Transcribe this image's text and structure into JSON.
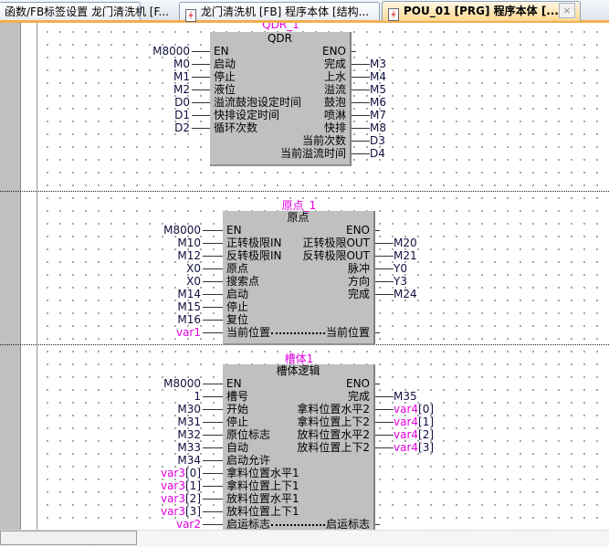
{
  "tabs": [
    {
      "label": "函数/FB标签设置 龙门清洗机 [F...",
      "active": false,
      "icon": "none"
    },
    {
      "label": "龙门清洗机 [FB] 程序本体 [结构...",
      "active": false,
      "icon": "program-file-icon"
    },
    {
      "label": "POU_01 [PRG] 程序本体 [...",
      "active": true,
      "icon": "program-file-icon"
    }
  ],
  "close_label": "×",
  "colors": {
    "variable": "#e000e0",
    "address": "#101040",
    "block": "#c0c0c0",
    "active_tab": "#ffd890"
  },
  "blocks": [
    {
      "instance": "QDR_1",
      "type": "QDR",
      "inputs": [
        {
          "var": "M8000",
          "pin": "EN"
        },
        {
          "var": "M0",
          "pin": "启动"
        },
        {
          "var": "M1",
          "pin": "停止"
        },
        {
          "var": "M2",
          "pin": "液位"
        },
        {
          "var": "D0",
          "pin": "溢流鼓泡设定时间"
        },
        {
          "var": "D1",
          "pin": "快排设定时间"
        },
        {
          "var": "D2",
          "pin": "循环次数"
        }
      ],
      "outputs": [
        {
          "pin": "ENO",
          "var": ""
        },
        {
          "pin": "完成",
          "var": "M3"
        },
        {
          "pin": "上水",
          "var": "M4"
        },
        {
          "pin": "溢流",
          "var": "M5"
        },
        {
          "pin": "鼓泡",
          "var": "M6"
        },
        {
          "pin": "喷淋",
          "var": "M7"
        },
        {
          "pin": "快排",
          "var": "M8"
        },
        {
          "pin": "当前次数",
          "var": "D3"
        },
        {
          "pin": "当前溢流时间",
          "var": "D4"
        }
      ],
      "inouts": []
    },
    {
      "instance": "原点_1",
      "type": "原点",
      "inputs": [
        {
          "var": "M8000",
          "pin": "EN"
        },
        {
          "var": "M10",
          "pin": "正转极限IN"
        },
        {
          "var": "M12",
          "pin": "反转极限IN"
        },
        {
          "var": "X0",
          "pin": "原点"
        },
        {
          "var": "X0",
          "pin": "搜索点"
        },
        {
          "var": "M14",
          "pin": "启动"
        },
        {
          "var": "M15",
          "pin": "停止"
        },
        {
          "var": "M16",
          "pin": "复位"
        }
      ],
      "outputs": [
        {
          "pin": "ENO",
          "var": ""
        },
        {
          "pin": "正转极限OUT",
          "var": "M20"
        },
        {
          "pin": "反转极限OUT",
          "var": "M21"
        },
        {
          "pin": "脉冲",
          "var": "Y0"
        },
        {
          "pin": "方向",
          "var": "Y3"
        },
        {
          "pin": "完成",
          "var": "M24"
        }
      ],
      "inouts": [
        {
          "var": "var1",
          "local": true,
          "pin_in": "当前位置",
          "pin_out": "当前位置"
        }
      ]
    },
    {
      "instance": "槽体1",
      "type": "槽体逻辑",
      "inputs": [
        {
          "var": "M8000",
          "pin": "EN"
        },
        {
          "var": "1",
          "pin": "槽号"
        },
        {
          "var": "M30",
          "pin": "开始"
        },
        {
          "var": "M31",
          "pin": "停止"
        },
        {
          "var": "M32",
          "pin": "原位标志"
        },
        {
          "var": "M33",
          "pin": "自动"
        },
        {
          "var": "M34",
          "pin": "启动允许"
        },
        {
          "var": "var3",
          "idx": "[0]",
          "local": true,
          "pin": "拿料位置水平1"
        },
        {
          "var": "var3",
          "idx": "[1]",
          "local": true,
          "pin": "拿料位置上下1"
        },
        {
          "var": "var3",
          "idx": "[2]",
          "local": true,
          "pin": "放料位置水平1"
        },
        {
          "var": "var3",
          "idx": "[3]",
          "local": true,
          "pin": "放料位置上下1"
        }
      ],
      "outputs": [
        {
          "pin": "ENO",
          "var": ""
        },
        {
          "pin": "完成",
          "var": "M35"
        },
        {
          "pin": "拿料位置水平2",
          "var": "var4",
          "idx": "[0]",
          "local": true
        },
        {
          "pin": "拿料位置上下2",
          "var": "var4",
          "idx": "[1]",
          "local": true
        },
        {
          "pin": "放料位置水平2",
          "var": "var4",
          "idx": "[2]",
          "local": true
        },
        {
          "pin": "放料位置上下2",
          "var": "var4",
          "idx": "[3]",
          "local": true
        }
      ],
      "inouts": [
        {
          "var": "var2",
          "local": true,
          "pin_in": "启运标志",
          "pin_out": "启运标志"
        }
      ]
    }
  ]
}
